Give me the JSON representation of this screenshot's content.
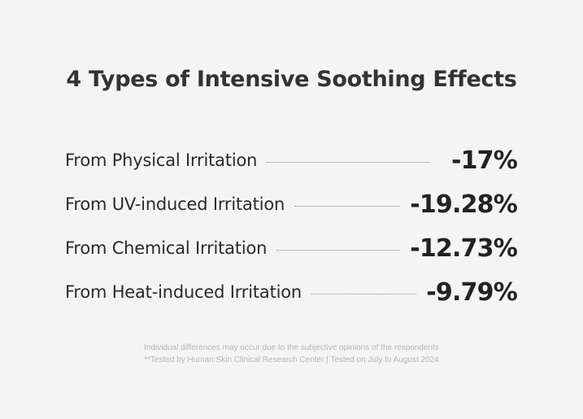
{
  "title": "4 Types of Intensive Soothing Effects",
  "rows": [
    {
      "label": "From Physical Irritation",
      "value": "-17%"
    },
    {
      "label": "From UV-induced Irritation",
      "value": "-19.28%"
    },
    {
      "label": "From Chemical Irritation",
      "value": "-12.73%"
    },
    {
      "label": "From Heat-induced Irritation",
      "value": "-9.79%"
    }
  ],
  "footnotes": {
    "line1": "Individual differences may occur due to the subjective opinions of the respondents",
    "line2": "**Tested by Human Skin Clinical Research Center | Tested on July to August 2024"
  },
  "colors": {
    "background": "#f4f4f4",
    "text": "#2a2a2a",
    "footnote": "#b6b6b6"
  }
}
